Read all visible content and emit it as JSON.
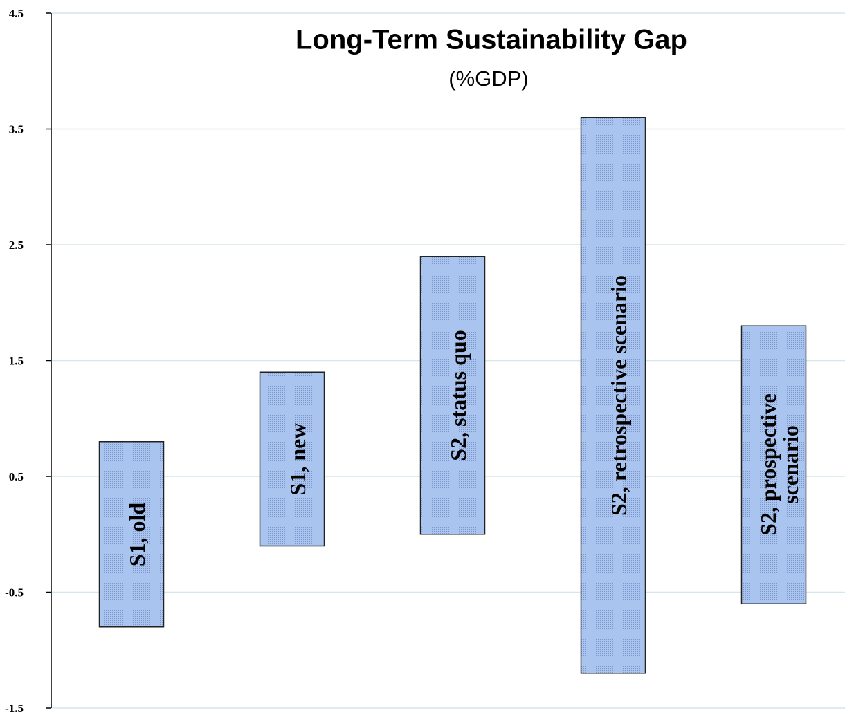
{
  "chart_data": {
    "type": "floating_bar",
    "title": "Long-Term Sustainability Gap",
    "subtitle": "(%GDP)",
    "categories": [
      "S1, old",
      "S1, new",
      "S2, status quo",
      "S2, retrospective scenario",
      "S2, prospective scenario"
    ],
    "low": [
      -0.8,
      -0.1,
      0.0,
      -1.2,
      -0.6
    ],
    "high": [
      0.8,
      1.4,
      2.4,
      3.6,
      1.8
    ],
    "color": "#9db9e6",
    "ylim": [
      -1.5,
      4.5
    ],
    "yticks": [
      4.5,
      3.5,
      2.5,
      1.5,
      0.5,
      -0.5,
      -1.5
    ],
    "grid": true
  }
}
